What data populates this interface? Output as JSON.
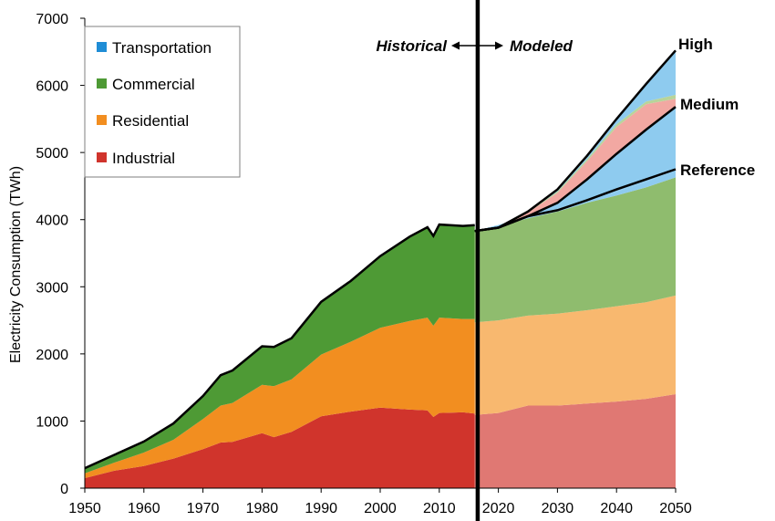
{
  "chart_data": {
    "type": "area",
    "title": "",
    "ylabel": "Electricity Consumption (TWh)",
    "xlabel": "",
    "xlim": [
      1950,
      2050
    ],
    "ylim": [
      0,
      7000
    ],
    "x_ticks": [
      "1950",
      "1960",
      "1970",
      "1980",
      "1990",
      "2000",
      "2010",
      "2020",
      "2030",
      "2040",
      "2050"
    ],
    "y_ticks": [
      "0",
      "1000",
      "2000",
      "3000",
      "4000",
      "5000",
      "6000",
      "7000"
    ],
    "grid": false,
    "legend_position": "top-left",
    "divider_year": 2016.5,
    "period_labels": {
      "historical": "Historical",
      "modeled": "Modeled"
    },
    "colors": {
      "Industrial": "#d0342c",
      "Residential": "#f28e20",
      "Commercial": "#4e9a35",
      "Transportation": "#1f8dd6",
      "Industrial_modeled": "#e07873",
      "Residential_modeled": "#f8b86f",
      "Commercial_modeled": "#8fbc6e",
      "Transportation_modeled": "#8ecbef",
      "Medium_band": "#f2a8a2",
      "Medium_band2": "#b8d49a"
    },
    "legend": [
      "Transportation",
      "Commercial",
      "Residential",
      "Industrial"
    ],
    "historical": {
      "x": [
        1950,
        1955,
        1960,
        1965,
        1970,
        1973,
        1975,
        1980,
        1982,
        1985,
        1990,
        1995,
        2000,
        2005,
        2008,
        2009,
        2010,
        2014,
        2016
      ],
      "series": [
        {
          "name": "Industrial",
          "values": [
            150,
            260,
            330,
            440,
            580,
            680,
            690,
            820,
            760,
            840,
            1070,
            1140,
            1200,
            1170,
            1160,
            1060,
            1120,
            1130,
            1110
          ]
        },
        {
          "name": "Residential",
          "values": [
            70,
            120,
            200,
            280,
            450,
            550,
            580,
            720,
            760,
            780,
            920,
            1040,
            1190,
            1320,
            1380,
            1360,
            1420,
            1390,
            1410
          ]
        },
        {
          "name": "Commercial",
          "values": [
            70,
            110,
            160,
            240,
            340,
            450,
            480,
            570,
            580,
            610,
            780,
            900,
            1060,
            1250,
            1340,
            1330,
            1380,
            1380,
            1390
          ]
        },
        {
          "name": "Transportation",
          "values": [
            8,
            6,
            4,
            4,
            3,
            3,
            3,
            3,
            4,
            4,
            5,
            5,
            6,
            7,
            7,
            7,
            7,
            7,
            7
          ]
        }
      ]
    },
    "modeled": {
      "x": [
        2016,
        2020,
        2025,
        2030,
        2035,
        2040,
        2045,
        2050
      ],
      "series": [
        {
          "name": "Industrial",
          "values": [
            1090,
            1120,
            1230,
            1230,
            1260,
            1290,
            1330,
            1400
          ]
        },
        {
          "name": "Residential",
          "values": [
            1380,
            1380,
            1340,
            1370,
            1390,
            1420,
            1440,
            1470
          ]
        },
        {
          "name": "Commercial",
          "values": [
            1350,
            1400,
            1450,
            1520,
            1600,
            1650,
            1710,
            1760
          ]
        },
        {
          "name": "Transportation",
          "values": [
            10,
            20,
            30,
            40,
            50,
            60,
            80,
            110
          ]
        }
      ],
      "scenario_lines": [
        {
          "name": "High",
          "values": [
            3830,
            3880,
            4120,
            4450,
            4950,
            5500,
            6020,
            6520
          ]
        },
        {
          "name": "Medium",
          "values": [
            3830,
            3880,
            4050,
            4250,
            4600,
            4980,
            5340,
            5680
          ]
        },
        {
          "name": "Reference",
          "values": [
            3830,
            3880,
            4050,
            4140,
            4290,
            4450,
            4600,
            4750
          ]
        }
      ]
    },
    "high_band": {
      "name": "Transportation",
      "top": [
        3830,
        3880,
        4100,
        4380,
        4850,
        5350,
        5680,
        5900
      ],
      "bottom": [
        3830,
        3880,
        4050,
        4250,
        4600,
        4980,
        5340,
        5680
      ]
    },
    "medium_band": {
      "top": [
        3830,
        3880,
        4110,
        4420,
        4900,
        5420,
        5760,
        5860
      ],
      "mid": [
        3830,
        3880,
        4105,
        4400,
        4870,
        5380,
        5720,
        5800
      ]
    }
  }
}
